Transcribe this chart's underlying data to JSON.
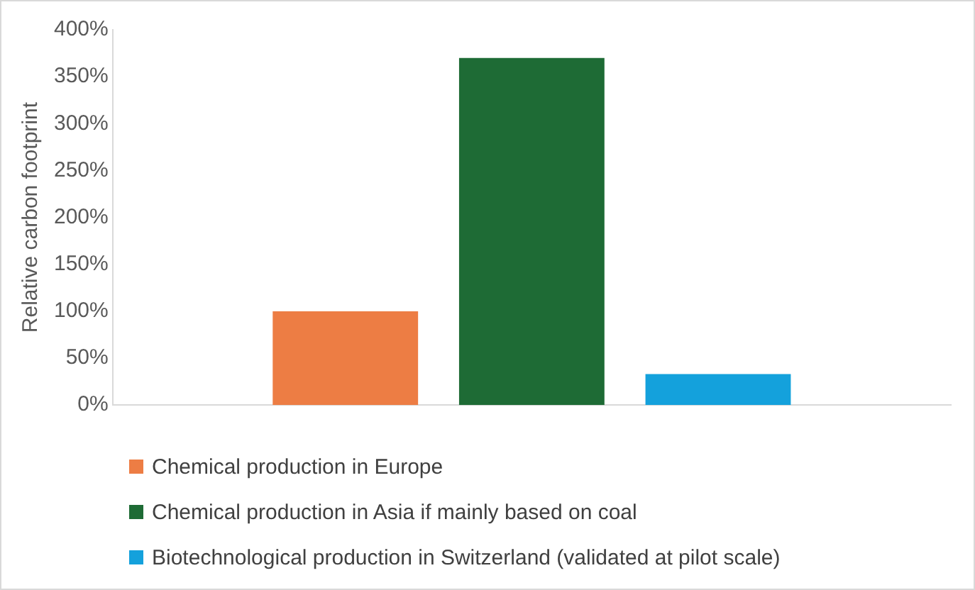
{
  "chart_data": {
    "type": "bar",
    "categories": [
      null
    ],
    "ylabel": "Relative carbon footprint",
    "series": [
      {
        "name": "Chemical production in Europe",
        "color": "#ed7d44",
        "values": [
          100
        ]
      },
      {
        "name": "Chemical production in Asia if mainly based on coal",
        "color": "#1e6b35",
        "values": [
          370
        ]
      },
      {
        "name": "Biotechnological production in Switzerland (validated at pilot scale)",
        "color": "#14a1dc",
        "values": [
          33
        ]
      }
    ],
    "ylim": [
      0,
      400
    ],
    "yticks": [
      {
        "value": 0,
        "label": "0%"
      },
      {
        "value": 50,
        "label": "50%"
      },
      {
        "value": 100,
        "label": "100%"
      },
      {
        "value": 150,
        "label": "150%"
      },
      {
        "value": 200,
        "label": "200%"
      },
      {
        "value": 250,
        "label": "250%"
      },
      {
        "value": 300,
        "label": "300%"
      },
      {
        "value": 350,
        "label": "350%"
      },
      {
        "value": 400,
        "label": "400%"
      }
    ],
    "legend": "bottom"
  }
}
